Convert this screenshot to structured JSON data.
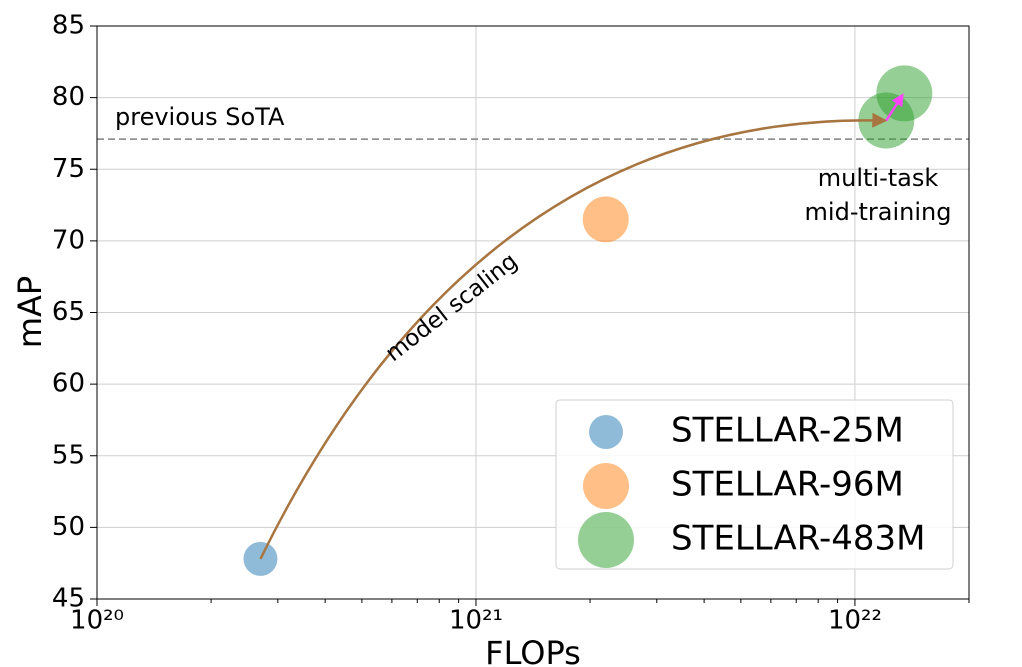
{
  "chart_data": {
    "type": "scatter",
    "xlabel": "FLOPs",
    "ylabel": "mAP",
    "xscale": "log",
    "xlim": [
      1e+20,
      2e+22
    ],
    "ylim": [
      45,
      85
    ],
    "xticks": [
      {
        "value": 1e+20,
        "label": "10²⁰"
      },
      {
        "value": 1e+21,
        "label": "10²¹"
      },
      {
        "value": 1e+22,
        "label": "10²²"
      }
    ],
    "xminorticks": [
      2e+20,
      3e+20,
      4e+20,
      5e+20,
      6e+20,
      7e+20,
      8e+20,
      9e+20,
      2e+21,
      3e+21,
      4e+21,
      5e+21,
      6e+21,
      7e+21,
      8e+21,
      9e+21,
      2e+22
    ],
    "yticks": [
      45,
      50,
      55,
      60,
      65,
      70,
      75,
      80,
      85
    ],
    "grid": true,
    "legend": "lower right",
    "series": [
      {
        "name": "STELLAR-25M",
        "color": "#1f77b4",
        "marker_size": 17,
        "x": [
          2.7e+20
        ],
        "y": [
          47.8
        ]
      },
      {
        "name": "STELLAR-96M",
        "color": "#ff7f0e",
        "marker_size": 23,
        "x": [
          2.2e+21
        ],
        "y": [
          71.5
        ]
      },
      {
        "name": "STELLAR-483M",
        "color": "#2ca02c",
        "marker_size": 28,
        "x": [
          1.21e+22,
          1.35e+22
        ],
        "y": [
          78.4,
          80.3
        ]
      }
    ],
    "reference_line": {
      "value": 77.1,
      "label": "previous SoTA",
      "color": "#808080"
    },
    "annotations": [
      {
        "text": "model scaling",
        "color": "#a87540"
      },
      {
        "lines": [
          "multi-task",
          "mid-training"
        ],
        "color": "#ff44ff"
      }
    ]
  }
}
